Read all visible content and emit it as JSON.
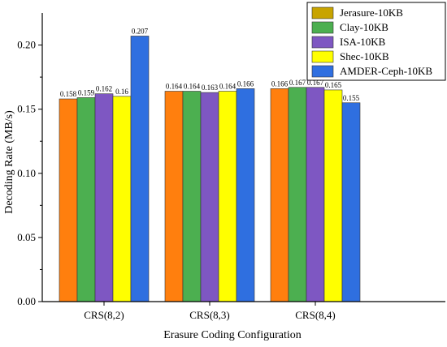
{
  "chart_data": {
    "type": "bar",
    "categories": [
      "CRS(8,2)",
      "CRS(8,3)",
      "CRS(8,4)"
    ],
    "series": [
      {
        "name": "Jerasure-10KB",
        "color": "#ff7f0e",
        "values": [
          0.158,
          0.164,
          0.166
        ],
        "labels": [
          "0.158",
          "0.164",
          "0.166"
        ]
      },
      {
        "name": "Clay-10KB",
        "color": "#4caf50",
        "values": [
          0.159,
          0.164,
          0.167
        ],
        "labels": [
          "0.159",
          "0.164",
          "0.167"
        ]
      },
      {
        "name": "ISA-10KB",
        "color": "#7e57c2",
        "values": [
          0.162,
          0.163,
          0.167
        ],
        "labels": [
          "0.162",
          "0.163",
          "0.167"
        ]
      },
      {
        "name": "Shec-10KB",
        "color": "#ffff00",
        "values": [
          0.16,
          0.164,
          0.165
        ],
        "labels": [
          "0.16",
          "0.164",
          "0.165"
        ]
      },
      {
        "name": "AMDER-Ceph-10KB",
        "color": "#2f6fe0",
        "values": [
          0.207,
          0.166,
          0.155
        ],
        "labels": [
          "0.207",
          "0.166",
          "0.155"
        ]
      }
    ],
    "legend_swatch_colors": [
      "#c8a400",
      "#4caf50",
      "#7e57c2",
      "#ffff00",
      "#2f6fe0"
    ],
    "xlabel": "Erasure Coding Configuration",
    "ylabel": "Decoding Rate (MB/s)",
    "ylim": [
      0,
      0.225
    ],
    "yticks": [
      0.0,
      0.05,
      0.1,
      0.15,
      0.2
    ],
    "ytick_labels": [
      "0.00",
      "0.05",
      "0.10",
      "0.15",
      "0.20"
    ],
    "grid": false,
    "legend_position": "top-right"
  }
}
